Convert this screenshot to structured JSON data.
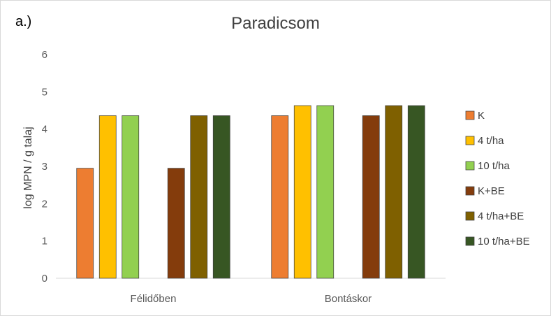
{
  "panel_label": "a.)",
  "chart_data": {
    "type": "bar",
    "title": "Paradicsom",
    "xlabel": "",
    "ylabel": "log MPN / g talaj",
    "ylim": [
      0,
      6
    ],
    "yticks": [
      0,
      1,
      2,
      3,
      4,
      5,
      6
    ],
    "grid": false,
    "legend_position": "right",
    "categories": [
      "Félidőben",
      "Bontáskor"
    ],
    "series": [
      {
        "name": "K",
        "color": "#ed7d31",
        "values": [
          2.95,
          4.36
        ]
      },
      {
        "name": "4 t/ha",
        "color": "#ffc000",
        "values": [
          4.36,
          4.63
        ]
      },
      {
        "name": "10 t/ha",
        "color": "#92d050",
        "values": [
          4.36,
          4.63
        ]
      },
      {
        "name": "K+BE",
        "color": "#843c0c",
        "values": [
          2.95,
          4.36
        ]
      },
      {
        "name": "4 t/ha+BE",
        "color": "#7f6000",
        "values": [
          4.36,
          4.63
        ]
      },
      {
        "name": "10 t/ha+BE",
        "color": "#375623",
        "values": [
          4.36,
          4.63
        ]
      }
    ]
  }
}
